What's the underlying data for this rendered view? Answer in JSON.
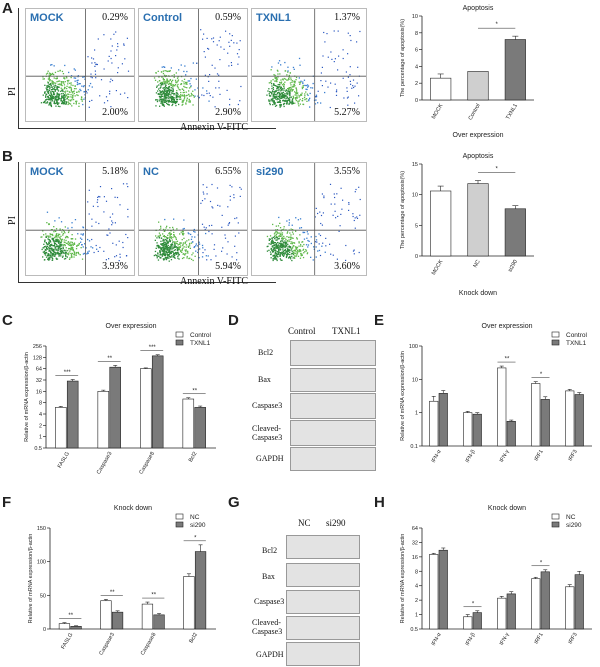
{
  "colors": {
    "white_bar": "#ffffff",
    "grey_bar": "#cfcfcf",
    "dark_bar": "#7a7a7a",
    "gate": "#444444",
    "flow_name": "#2a6fb0"
  },
  "panels": {
    "a": "A",
    "b": "B",
    "c": "C",
    "d": "D",
    "e": "E",
    "f": "F",
    "g": "G",
    "h": "H"
  },
  "flow": {
    "y_axis": "PI",
    "x_axis": "Annexin V-FITC",
    "row_a": [
      {
        "name": "MOCK",
        "ur": "0.29%",
        "lr": "2.00%"
      },
      {
        "name": "Control",
        "ur": "0.59%",
        "lr": "2.90%"
      },
      {
        "name": "TXNL1",
        "ur": "1.37%",
        "lr": "5.27%"
      }
    ],
    "row_b": [
      {
        "name": "MOCK",
        "ur": "5.18%",
        "lr": "3.93%"
      },
      {
        "name": "NC",
        "ur": "6.55%",
        "lr": "5.94%"
      },
      {
        "name": "si290",
        "ur": "3.55%",
        "lr": "3.60%"
      }
    ]
  },
  "blots": {
    "d": {
      "headers": [
        "Control",
        "TXNL1"
      ],
      "rows": [
        "Bcl2",
        "Bax",
        "Caspase3",
        "Cleaved-\nCaspase3",
        "GAPDH"
      ]
    },
    "g": {
      "headers": [
        "NC",
        "si290"
      ],
      "rows": [
        "Bcl2",
        "Bax",
        "Caspase3",
        "Cleaved-\nCaspase3",
        "GAPDH"
      ]
    }
  },
  "chart_data": [
    {
      "id": "A",
      "type": "bar",
      "title": "Apoptosis",
      "ylabel": "The percentage of apoptosis(%)",
      "xlabel": "Over expression",
      "ylim": [
        0,
        10
      ],
      "yticks": [
        0,
        2,
        4,
        6,
        8,
        10
      ],
      "categories": [
        "MOCK",
        "Control",
        "TXNL1"
      ],
      "values": [
        2.6,
        3.4,
        7.2
      ],
      "errors": [
        0.5,
        0,
        0.4
      ],
      "colors": [
        "white_bar",
        "grey_bar",
        "dark_bar"
      ],
      "sig": [
        {
          "from": 1,
          "to": 2,
          "label": "*"
        }
      ]
    },
    {
      "id": "B",
      "type": "bar",
      "title": "Apoptosis",
      "ylabel": "The percentage of apoptosis(%)",
      "xlabel": "Knock down",
      "ylim": [
        0,
        15
      ],
      "yticks": [
        0,
        5,
        10,
        15
      ],
      "categories": [
        "MOCK",
        "NC",
        "si290"
      ],
      "values": [
        10.6,
        11.8,
        7.7
      ],
      "errors": [
        0.8,
        0.5,
        0.5
      ],
      "colors": [
        "white_bar",
        "grey_bar",
        "dark_bar"
      ],
      "sig": [
        {
          "from": 1,
          "to": 2,
          "label": "*"
        }
      ]
    },
    {
      "id": "C",
      "type": "bar",
      "title": "Over expression",
      "ylabel": "Relative of mRNA expression/β-actin",
      "scale": "log2",
      "ylim": [
        0.5,
        256
      ],
      "yticks": [
        0.5,
        1,
        2,
        4,
        8,
        16,
        32,
        64,
        128,
        256
      ],
      "categories": [
        "FASLG",
        "Caspase3",
        "Caspase8",
        "Bcl2"
      ],
      "series": [
        {
          "name": "Control",
          "values": [
            6,
            16,
            64,
            10
          ],
          "errors": [
            0.4,
            1.2,
            3,
            0.8
          ]
        },
        {
          "name": "TXNL1",
          "values": [
            30,
            70,
            140,
            6
          ],
          "errors": [
            3,
            8,
            10,
            0.5
          ]
        }
      ],
      "sig": [
        "***",
        "**",
        "***",
        "**"
      ]
    },
    {
      "id": "E",
      "type": "bar",
      "title": "Over expression",
      "ylabel": "Relative of mRNA expression/β-actin",
      "scale": "log10",
      "ylim": [
        0.1,
        100
      ],
      "yticks": [
        0.1,
        1,
        10,
        100
      ],
      "categories": [
        "IFN-α",
        "IFN-β",
        "IFN-γ",
        "IRF1",
        "IRF3"
      ],
      "series": [
        {
          "name": "Control",
          "values": [
            2.2,
            1,
            22,
            7.5,
            4.5
          ],
          "errors": [
            0.9,
            0.1,
            3,
            1,
            0.5
          ]
        },
        {
          "name": "TXNL1",
          "values": [
            3.8,
            0.9,
            0.55,
            2.5,
            3.5
          ],
          "errors": [
            0.8,
            0.1,
            0.05,
            0.5,
            0.5
          ]
        }
      ],
      "sig": [
        "",
        "",
        "**",
        "*",
        ""
      ]
    },
    {
      "id": "F",
      "type": "bar",
      "title": "Knock down",
      "ylabel": "Relative of mRNA expression/β-actin",
      "ylim": [
        0,
        150
      ],
      "yticks": [
        0,
        50,
        100,
        150
      ],
      "categories": [
        "FASLG",
        "Caspase3",
        "Caspase8",
        "Bcl2"
      ],
      "series": [
        {
          "name": "NC",
          "values": [
            8,
            42,
            37,
            78
          ],
          "errors": [
            1.5,
            2,
            3,
            4
          ]
        },
        {
          "name": "si290",
          "values": [
            4,
            25,
            21,
            115
          ],
          "errors": [
            0.8,
            2,
            2,
            10
          ]
        }
      ],
      "sig": [
        "**",
        "**",
        "**",
        "*"
      ]
    },
    {
      "id": "H",
      "type": "bar",
      "title": "Knock down",
      "ylabel": "Relative of mRNA expression/β-actin",
      "scale": "log2",
      "ylim": [
        0.5,
        64
      ],
      "yticks": [
        0.5,
        1,
        2,
        4,
        8,
        16,
        32,
        64
      ],
      "categories": [
        "IFN-α",
        "IFN-β",
        "IFN-γ",
        "IRF1",
        "IRF3"
      ],
      "series": [
        {
          "name": "NC",
          "values": [
            18,
            0.9,
            2.2,
            5.6,
            3.8
          ],
          "errors": [
            1,
            0.1,
            0.2,
            0.4,
            0.4
          ]
        },
        {
          "name": "si290",
          "values": [
            22,
            1.1,
            2.7,
            7.8,
            6.8
          ],
          "errors": [
            2.5,
            0.1,
            0.3,
            0.8,
            1.2
          ]
        }
      ],
      "sig": [
        "",
        "*",
        "",
        "*",
        ""
      ]
    }
  ]
}
